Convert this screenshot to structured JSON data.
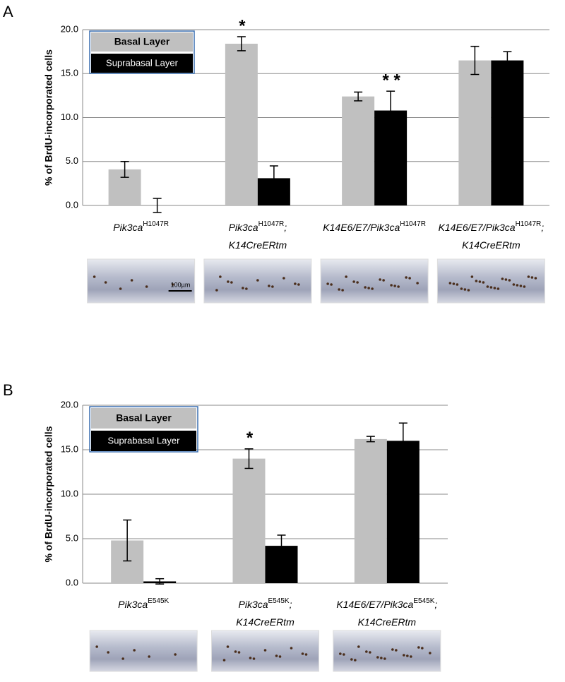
{
  "chart_data": [
    {
      "type": "bar",
      "panel_label": "A",
      "y_label": "% of BrdU-incorporated cells",
      "categories": [
        [
          [
            {
              "text": "Pik3ca"
            },
            {
              "text": "H1047R",
              "sup": true
            }
          ]
        ],
        [
          [
            {
              "text": "Pik3ca"
            },
            {
              "text": "H1047R",
              "sup": true
            },
            {
              "text": ";"
            }
          ],
          [
            {
              "text": "K14CreERtm"
            }
          ]
        ],
        [
          [
            {
              "text": "K14E6/E7/Pik3ca"
            },
            {
              "text": "H1047R",
              "sup": true
            }
          ]
        ],
        [
          [
            {
              "text": "K14E6/E7/Pik3ca"
            },
            {
              "text": "H1047R",
              "sup": true
            },
            {
              "text": ";"
            }
          ],
          [
            {
              "text": "K14CreERtm"
            }
          ]
        ]
      ],
      "series": [
        {
          "name": "Basal Layer",
          "color": "#c0c0c0",
          "values": [
            4.1,
            18.4,
            12.4,
            16.5
          ],
          "errors": [
            0.9,
            0.8,
            0.5,
            1.6
          ]
        },
        {
          "name": "Suprabasal Layer",
          "color": "#000000",
          "values": [
            0,
            3.1,
            10.8,
            16.5
          ],
          "errors": [
            0.8,
            1.4,
            2.2,
            1.0
          ]
        }
      ],
      "ylim": [
        0,
        20
      ],
      "yticks": [
        {
          "value": 0,
          "label": "0.0"
        },
        {
          "value": 5,
          "label": "5.0"
        },
        {
          "value": 10,
          "label": "10.0"
        },
        {
          "value": 15,
          "label": "15.0"
        },
        {
          "value": 20,
          "label": "20.0"
        }
      ],
      "grid": true,
      "legend": "upper left",
      "annotations": [
        {
          "text": "*",
          "category": 1,
          "series": 0
        },
        {
          "text": "* *",
          "category": 2,
          "series": 1
        }
      ],
      "scale_bar": "100µm"
    },
    {
      "type": "bar",
      "panel_label": "B",
      "y_label": "% of BrdU-incorporated cells",
      "categories": [
        [
          [
            {
              "text": "Pik3ca"
            },
            {
              "text": "E545K",
              "sup": true
            }
          ]
        ],
        [
          [
            {
              "text": "Pik3ca"
            },
            {
              "text": "E545K",
              "sup": true
            },
            {
              "text": ";"
            }
          ],
          [
            {
              "text": "K14CreERtm"
            }
          ]
        ],
        [
          [
            {
              "text": "K14E6/E7/Pik3ca"
            },
            {
              "text": "E545K",
              "sup": true
            },
            {
              "text": ";"
            }
          ],
          [
            {
              "text": "K14CreERtm"
            }
          ]
        ]
      ],
      "series": [
        {
          "name": "Basal Layer",
          "color": "#c0c0c0",
          "values": [
            4.8,
            14.0,
            16.2
          ],
          "errors": [
            2.3,
            1.1,
            0.3
          ]
        },
        {
          "name": "Suprabasal Layer",
          "color": "#000000",
          "values": [
            0.2,
            4.2,
            16.0
          ],
          "errors": [
            0.3,
            1.2,
            2.0
          ]
        }
      ],
      "ylim": [
        0,
        20
      ],
      "yticks": [
        {
          "value": 0,
          "label": "0.0"
        },
        {
          "value": 5,
          "label": "5.0"
        },
        {
          "value": 10,
          "label": "10.0"
        },
        {
          "value": 15,
          "label": "15.0"
        },
        {
          "value": 20,
          "label": "20.0"
        }
      ],
      "grid": true,
      "legend": "upper left",
      "annotations": [
        {
          "text": "*",
          "category": 1,
          "series": 0
        }
      ]
    }
  ]
}
